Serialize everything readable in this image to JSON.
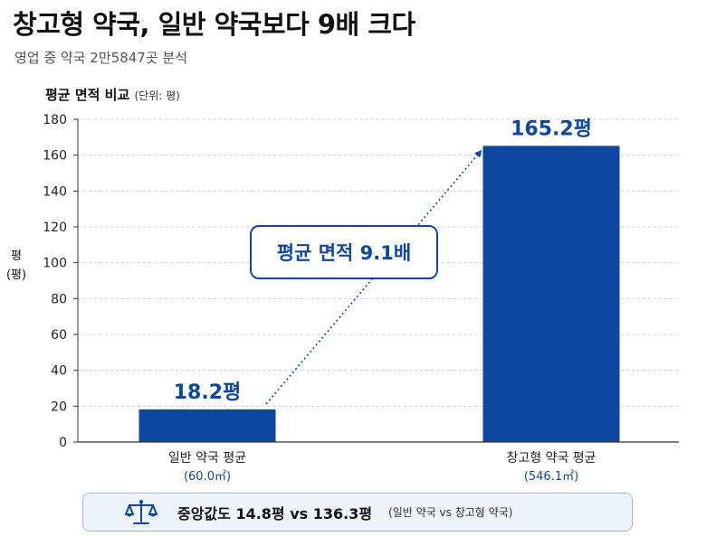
{
  "header": {
    "title": "창고형 약국, 일반 약국보다 9배 크다",
    "subtitle": "영업 중 약국 2만5847곳 분석"
  },
  "chart_data": {
    "type": "bar",
    "title": "평균 면적 비교",
    "unit_note": "(단위: 평)",
    "ylabel": "평\n(평)",
    "ylim": [
      0,
      180
    ],
    "yticks": [
      0,
      20,
      40,
      60,
      80,
      100,
      120,
      140,
      160,
      180
    ],
    "grid": true,
    "categories": [
      "일반 약국 평균",
      "창고형 약국 평균"
    ],
    "sublabels": [
      "(60.0㎡)",
      "(546.1㎡)"
    ],
    "values": [
      18.2,
      165.2
    ],
    "value_labels": [
      "18.2평",
      "165.2평"
    ],
    "bar_color": "#0d47a1",
    "annotation": "평균 면적 9.1배"
  },
  "summary": {
    "icon": "scale-icon",
    "median_text": "중앙값도 14.8평 vs 136.3평",
    "note": "(일반 약국 vs 창고형 약국)"
  }
}
